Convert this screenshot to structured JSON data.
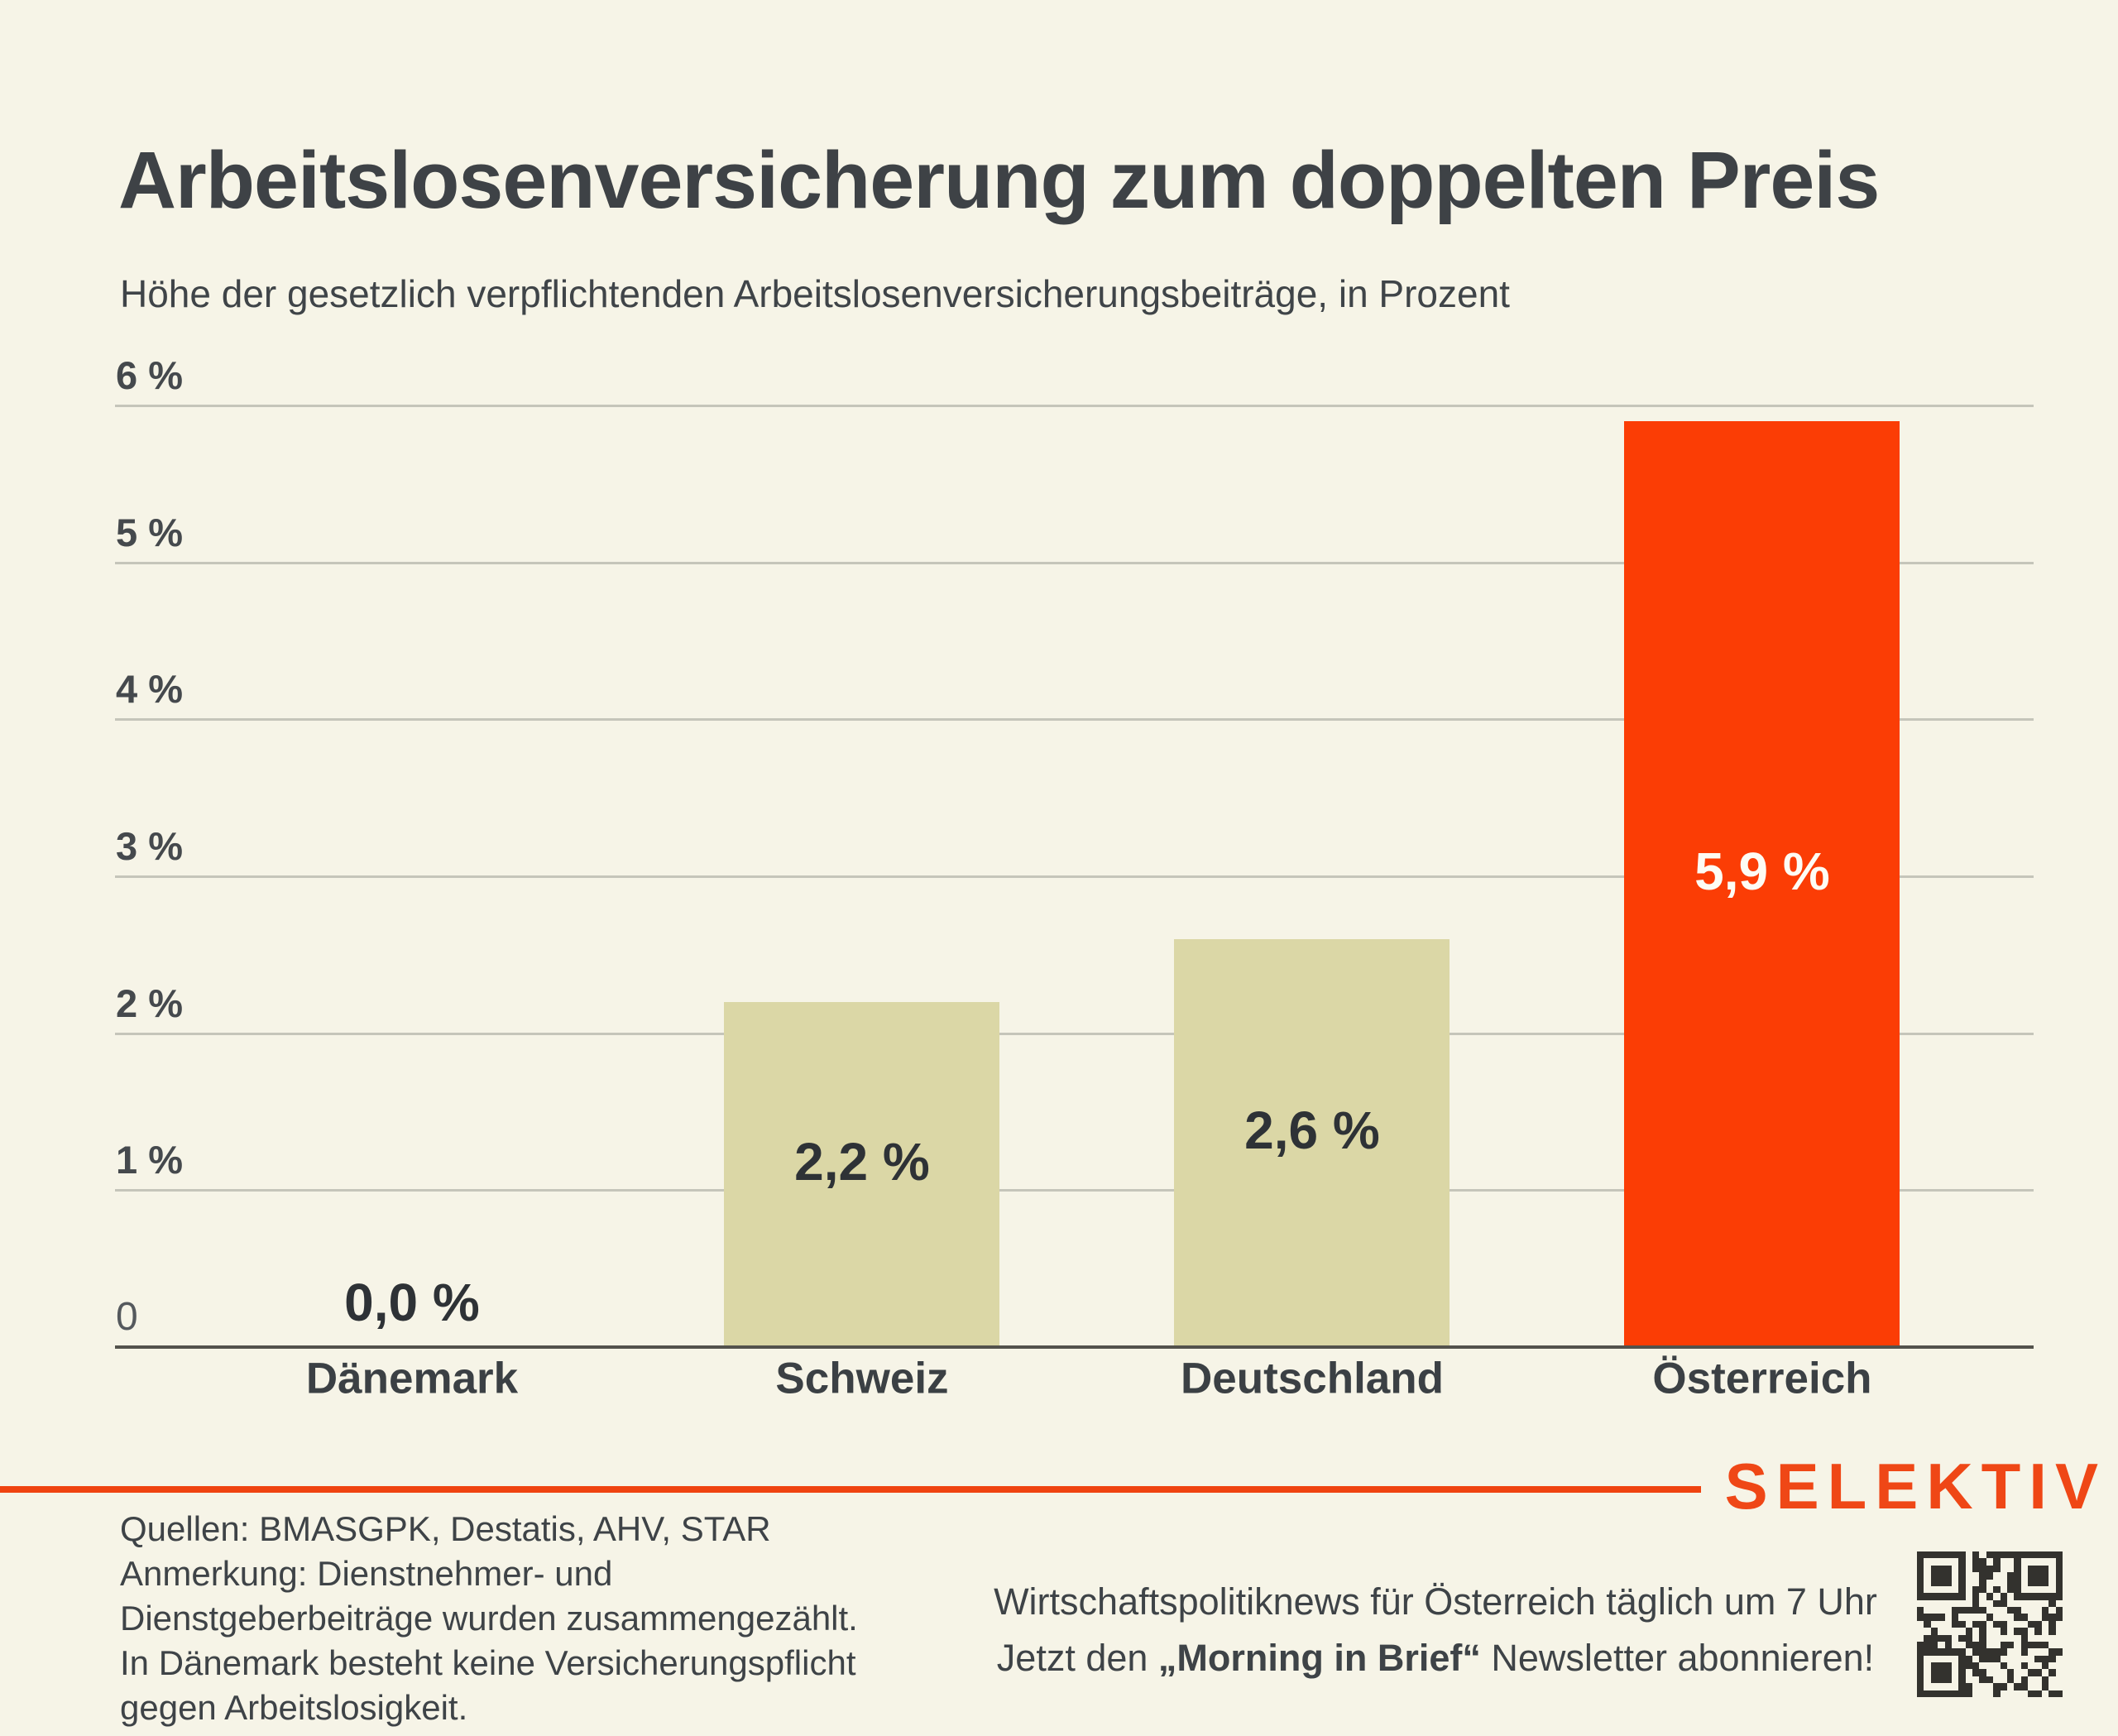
{
  "title": "Arbeitslosenversicherung zum doppelten Preis",
  "subtitle": "Höhe der gesetzlich verpflichtenden Arbeitslosenversicherungsbeiträge, in Prozent",
  "chart_data": {
    "type": "bar",
    "title": "Arbeitslosenversicherung zum doppelten Preis",
    "subtitle": "Höhe der gesetzlich verpflichtenden Arbeitslosenversicherungsbeiträge, in Prozent",
    "xlabel": "",
    "ylabel": "",
    "categories": [
      "Dänemark",
      "Schweiz",
      "Deutschland",
      "Österreich"
    ],
    "values": [
      0.0,
      2.2,
      2.6,
      5.9
    ],
    "value_labels": [
      "0,0 %",
      "2,2 %",
      "2,6 %",
      "5,9 %"
    ],
    "bar_colors": [
      "#dbd7a6",
      "#dbd7a6",
      "#dbd7a6",
      "#fb3d05"
    ],
    "value_label_colors": [
      "#2e3236",
      "#2e3236",
      "#2e3236",
      "#fdfcf4"
    ],
    "y_ticks": [
      {
        "value": 6,
        "label": "6 %"
      },
      {
        "value": 5,
        "label": "5 %"
      },
      {
        "value": 4,
        "label": "4 %"
      },
      {
        "value": 3,
        "label": "3 %"
      },
      {
        "value": 2,
        "label": "2 %"
      },
      {
        "value": 1,
        "label": "1 %"
      },
      {
        "value": 0,
        "label": "0"
      }
    ],
    "ylim": [
      0,
      6
    ],
    "grid": true,
    "legend": false
  },
  "footer": {
    "divider_color": "#ef4310",
    "logo": "SELEKTIV",
    "qr_icon": "qr-code",
    "notes_lines": [
      "Quellen: BMASGPK, Destatis, AHV, STAR",
      "Anmerkung: Dienstnehmer- und",
      "Dienstgeberbeiträge wurden zusammengezählt.",
      "In Dänemark besteht keine Versicherungspflicht",
      "gegen Arbeitslosigkeit."
    ],
    "newsletter_line1": "Wirtschaftspolitiknews für Österreich täglich um 7 Uhr",
    "newsletter_line2_prefix": "Jetzt den ",
    "newsletter_line2_bold": "„Morning in Brief“",
    "newsletter_line2_suffix": " Newsletter abonnieren!"
  },
  "colors": {
    "background": "#f6f4e7",
    "text_dark": "#3e4246",
    "gridline": "#c5c5ba",
    "axis": "#53524c",
    "bar_beige": "#dbd7a6",
    "bar_red": "#fb3d05",
    "accent_orange": "#ef4310",
    "qr_dark": "#33322e"
  }
}
